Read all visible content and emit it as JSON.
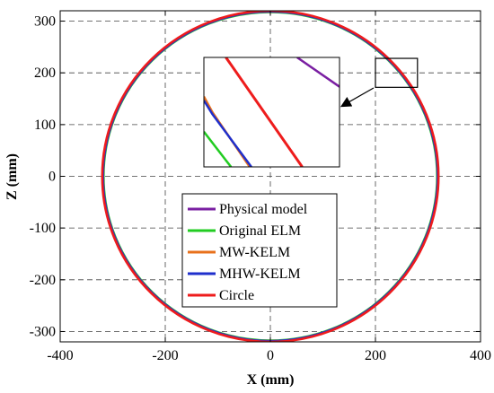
{
  "chart_data": {
    "type": "line",
    "xlabel": "X (mm)",
    "ylabel": "Z (mm)",
    "xlim": [
      -400,
      400
    ],
    "ylim": [
      -320,
      320
    ],
    "xticks": [
      -400,
      -200,
      0,
      200,
      400
    ],
    "yticks": [
      -300,
      -200,
      -100,
      0,
      100,
      200,
      300
    ],
    "xtick_labels": [
      "-400",
      "-200",
      "0",
      "200",
      "400"
    ],
    "ytick_labels": [
      "-300",
      "-200",
      "-100",
      "0",
      "100",
      "200",
      "300"
    ],
    "grid": true,
    "legend_position": "lower-center",
    "series": [
      {
        "name": "Physical model",
        "color": "#7a1fa2",
        "center": [
          0,
          0
        ],
        "radius": 318
      },
      {
        "name": "Original ELM",
        "color": "#22cc22",
        "center": [
          0,
          0
        ],
        "radius": 317
      },
      {
        "name": "MW-KELM",
        "color": "#e8711c",
        "center": [
          0,
          0
        ],
        "radius": 318
      },
      {
        "name": "MHW-KELM",
        "color": "#1f2fcc",
        "center": [
          0,
          0
        ],
        "radius": 318
      },
      {
        "name": "Circle",
        "color": "#ee1c1c",
        "center": [
          0,
          0
        ],
        "radius": 320
      }
    ],
    "zoom_region": {
      "x": [
        200,
        280
      ],
      "y": [
        172,
        228
      ]
    }
  }
}
